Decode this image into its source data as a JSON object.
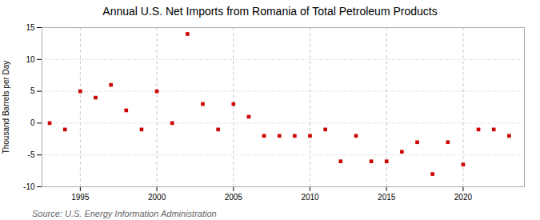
{
  "chart_data": {
    "type": "scatter",
    "title": "Annual U.S. Net Imports from Romania of Total Petroleum Products",
    "ylabel": "Thousand Barrels per Day",
    "source": "Source: U.S. Energy Information Administration",
    "x": [
      1993,
      1994,
      1995,
      1996,
      1997,
      1998,
      1999,
      2000,
      2001,
      2002,
      2003,
      2004,
      2005,
      2006,
      2007,
      2008,
      2009,
      2010,
      2011,
      2012,
      2013,
      2014,
      2015,
      2016,
      2017,
      2018,
      2019,
      2020,
      2021,
      2022,
      2023
    ],
    "values": [
      0,
      -1,
      5,
      4,
      6,
      2,
      -1,
      5,
      0,
      14,
      3,
      -1,
      3,
      1,
      -2,
      -2,
      -2,
      -2,
      -1,
      -6,
      -2,
      -6,
      -6,
      -4.5,
      -3,
      -8,
      -3,
      -6.5,
      -1,
      -1,
      -2
    ],
    "color": "#cc0000",
    "marker": "square",
    "xlim": [
      1992.5,
      2024
    ],
    "xticks": [
      1995,
      2000,
      2005,
      2010,
      2015,
      2020
    ],
    "ylim": [
      -10,
      15
    ],
    "yticks": [
      -10,
      -5,
      0,
      5,
      10,
      15
    ],
    "grid": true
  }
}
